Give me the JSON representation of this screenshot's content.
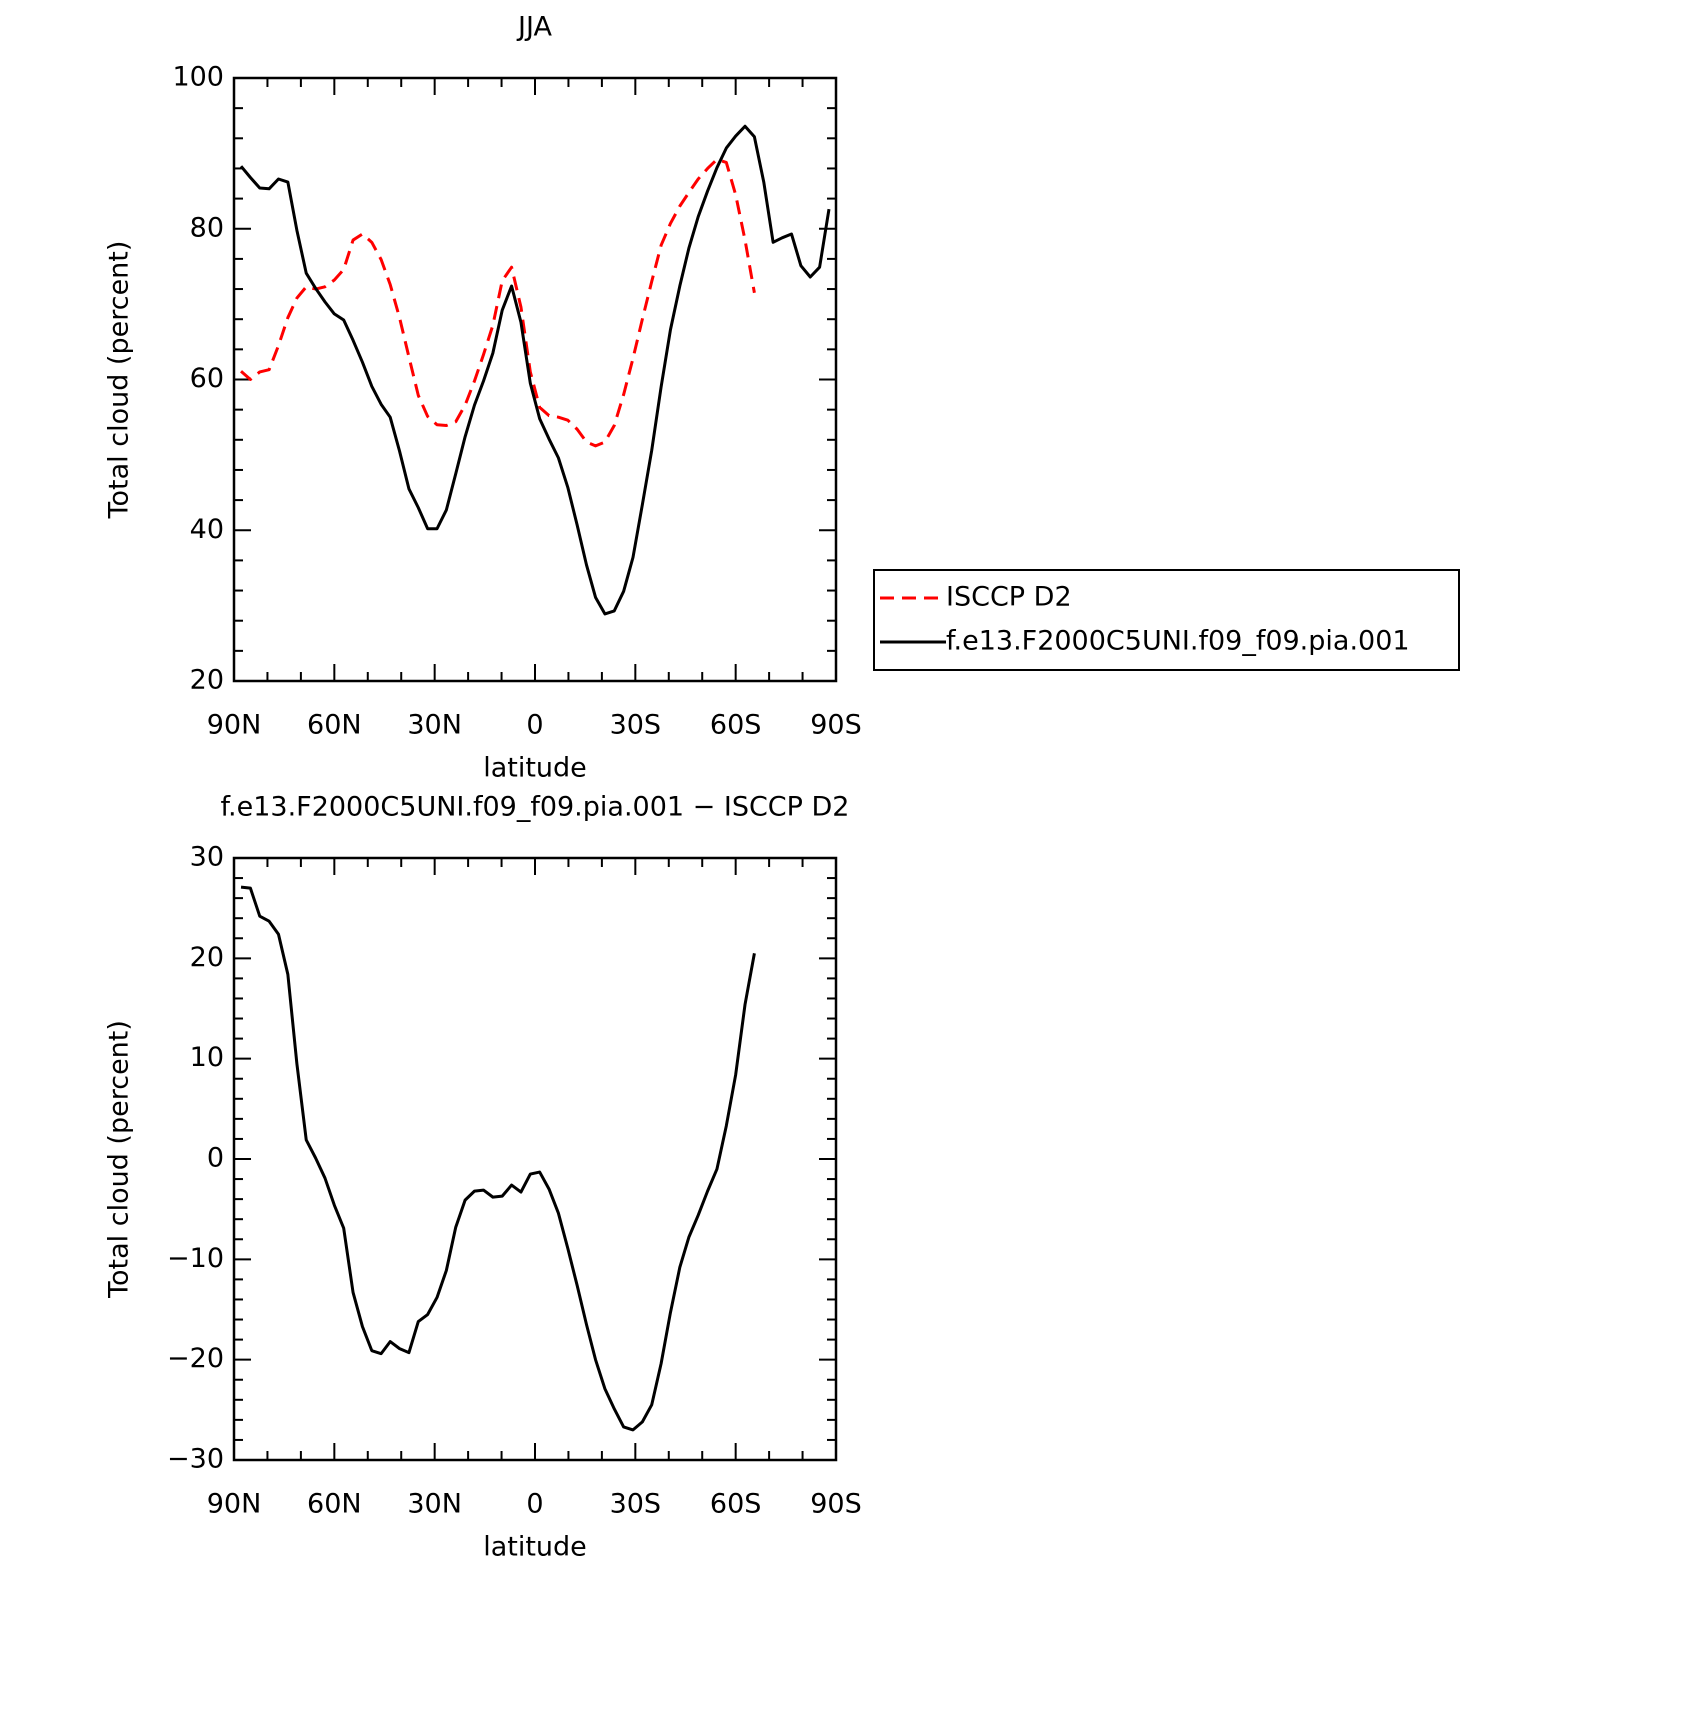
{
  "chart_data": [
    {
      "type": "line",
      "title": "JJA",
      "xlabel": "latitude",
      "ylabel": "Total cloud (percent)",
      "xlim": [
        90,
        -90
      ],
      "ylim": [
        20,
        100
      ],
      "xticks": [
        {
          "value": 90,
          "label": "90N"
        },
        {
          "value": 60,
          "label": "60N"
        },
        {
          "value": 30,
          "label": "30N"
        },
        0,
        {
          "value": -30,
          "label": "30S"
        },
        {
          "value": -60,
          "label": "60S"
        },
        {
          "value": -90,
          "label": "90S"
        }
      ],
      "yticks": [
        20,
        40,
        60,
        80,
        100
      ],
      "legend": "outside right",
      "series": [
        {
          "name": "ISCCP D2",
          "color": "#ff0000",
          "line_style": "dashed",
          "x": [
            87.9,
            85.1,
            82.3,
            79.5,
            76.7,
            73.9,
            71.2,
            68.4,
            65.6,
            62.8,
            60.0,
            57.2,
            54.4,
            51.6,
            48.8,
            46.0,
            43.3,
            40.5,
            37.7,
            34.9,
            32.1,
            29.3,
            26.5,
            23.7,
            20.9,
            18.1,
            15.4,
            12.6,
            9.8,
            7.0,
            4.2,
            1.4,
            -1.4,
            -4.2,
            -7.0,
            -9.8,
            -12.6,
            -15.4,
            -18.1,
            -20.9,
            -23.7,
            -26.5,
            -29.3,
            -32.1,
            -34.9,
            -37.7,
            -40.5,
            -43.3,
            -46.0,
            -48.8,
            -51.6,
            -54.4,
            -57.2,
            -60.0,
            -62.8,
            -65.6
          ],
          "values": [
            61.1,
            60.0,
            61.0,
            61.3,
            64.5,
            68.2,
            70.8,
            72.3,
            72.0,
            72.3,
            73.2,
            74.6,
            78.5,
            79.3,
            78.2,
            75.9,
            72.6,
            68.2,
            63.0,
            57.9,
            55.1,
            54.0,
            53.9,
            54.4,
            56.6,
            59.8,
            63.3,
            67.2,
            73.1,
            74.9,
            69.6,
            61.0,
            56.3,
            55.2,
            55.0,
            54.6,
            53.4,
            51.7,
            51.2,
            51.7,
            53.9,
            58.0,
            62.8,
            68.0,
            73.0,
            77.8,
            80.7,
            83.0,
            84.8,
            86.6,
            88.0,
            89.2,
            88.8,
            84.5,
            78.5,
            71.5
          ]
        },
        {
          "name": "f.e13.F2000C5UNI.f09_f09.pia.001",
          "color": "#000000",
          "line_style": "solid",
          "x": [
            87.9,
            85.1,
            82.3,
            79.5,
            76.7,
            73.9,
            71.2,
            68.4,
            65.6,
            62.8,
            60.0,
            57.2,
            54.4,
            51.6,
            48.8,
            46.0,
            43.3,
            40.5,
            37.7,
            34.9,
            32.1,
            29.3,
            26.5,
            23.7,
            20.9,
            18.1,
            15.4,
            12.6,
            9.8,
            7.0,
            4.2,
            1.4,
            -1.4,
            -4.2,
            -7.0,
            -9.8,
            -12.6,
            -15.4,
            -18.1,
            -20.9,
            -23.7,
            -26.5,
            -29.3,
            -32.1,
            -34.9,
            -37.7,
            -40.5,
            -43.3,
            -46.0,
            -48.8,
            -51.6,
            -54.4,
            -57.2,
            -60.0,
            -62.8,
            -65.6,
            -68.4,
            -71.2,
            -73.9,
            -76.7,
            -79.5,
            -82.3,
            -85.1,
            -87.9
          ],
          "values": [
            88.3,
            86.8,
            85.4,
            85.3,
            86.6,
            86.2,
            79.8,
            74.1,
            72.1,
            70.3,
            68.7,
            67.9,
            65.2,
            62.3,
            59.1,
            56.7,
            55.0,
            50.5,
            45.5,
            43.0,
            40.2,
            40.2,
            42.7,
            47.5,
            52.4,
            56.6,
            59.8,
            63.5,
            69.2,
            72.4,
            67.6,
            59.5,
            54.8,
            52.1,
            49.6,
            45.7,
            40.7,
            35.4,
            31.1,
            28.9,
            29.3,
            31.9,
            36.4,
            43.4,
            50.6,
            59.0,
            66.6,
            72.4,
            77.4,
            81.6,
            85.0,
            88.1,
            90.7,
            92.3,
            93.6,
            92.2,
            86.2,
            78.2,
            78.8,
            79.3,
            75.1,
            73.6,
            74.9,
            82.6
          ]
        }
      ]
    },
    {
      "type": "line",
      "title": "f.e13.F2000C5UNI.f09_f09.pia.001 − ISCCP D2",
      "xlabel": "latitude",
      "ylabel": "Total cloud (percent)",
      "xlim": [
        90,
        -90
      ],
      "ylim": [
        -30,
        30
      ],
      "xticks": [
        {
          "value": 90,
          "label": "90N"
        },
        {
          "value": 60,
          "label": "60N"
        },
        {
          "value": 30,
          "label": "30N"
        },
        0,
        {
          "value": -30,
          "label": "30S"
        },
        {
          "value": -60,
          "label": "60S"
        },
        {
          "value": -90,
          "label": "90S"
        }
      ],
      "yticks": [
        {
          "value": -30,
          "label": "−30"
        },
        {
          "value": -20,
          "label": "−20"
        },
        {
          "value": -10,
          "label": "−10"
        },
        0,
        10,
        20,
        30
      ],
      "series": [
        {
          "color": "#000000",
          "line_style": "solid",
          "x": [
            87.9,
            85.1,
            82.3,
            79.5,
            76.7,
            73.9,
            71.2,
            68.4,
            65.6,
            62.8,
            60.0,
            57.2,
            54.4,
            51.6,
            48.8,
            46.0,
            43.3,
            40.5,
            37.7,
            34.9,
            32.1,
            29.3,
            26.5,
            23.7,
            20.9,
            18.1,
            15.4,
            12.6,
            9.8,
            7.0,
            4.2,
            1.4,
            -1.4,
            -4.2,
            -7.0,
            -9.8,
            -12.6,
            -15.4,
            -18.1,
            -20.9,
            -23.7,
            -26.5,
            -29.3,
            -32.1,
            -34.9,
            -37.7,
            -40.5,
            -43.3,
            -46.0,
            -48.8,
            -51.6,
            -54.4,
            -57.2,
            -60.0,
            -62.8,
            -65.6
          ],
          "values": [
            27.1,
            27.0,
            24.2,
            23.7,
            22.4,
            18.4,
            9.5,
            1.9,
            0.1,
            -1.9,
            -4.6,
            -6.9,
            -13.3,
            -16.7,
            -19.1,
            -19.4,
            -18.2,
            -18.9,
            -19.3,
            -16.2,
            -15.5,
            -13.8,
            -11.1,
            -6.8,
            -4.1,
            -3.2,
            -3.1,
            -3.8,
            -3.7,
            -2.6,
            -3.3,
            -1.5,
            -1.3,
            -3.0,
            -5.4,
            -8.9,
            -12.6,
            -16.5,
            -20.0,
            -22.9,
            -24.9,
            -26.7,
            -27.0,
            -26.2,
            -24.5,
            -20.4,
            -15.3,
            -10.8,
            -7.8,
            -5.6,
            -3.2,
            -1.0,
            3.3,
            8.4,
            15.4,
            20.5
          ]
        }
      ]
    }
  ]
}
